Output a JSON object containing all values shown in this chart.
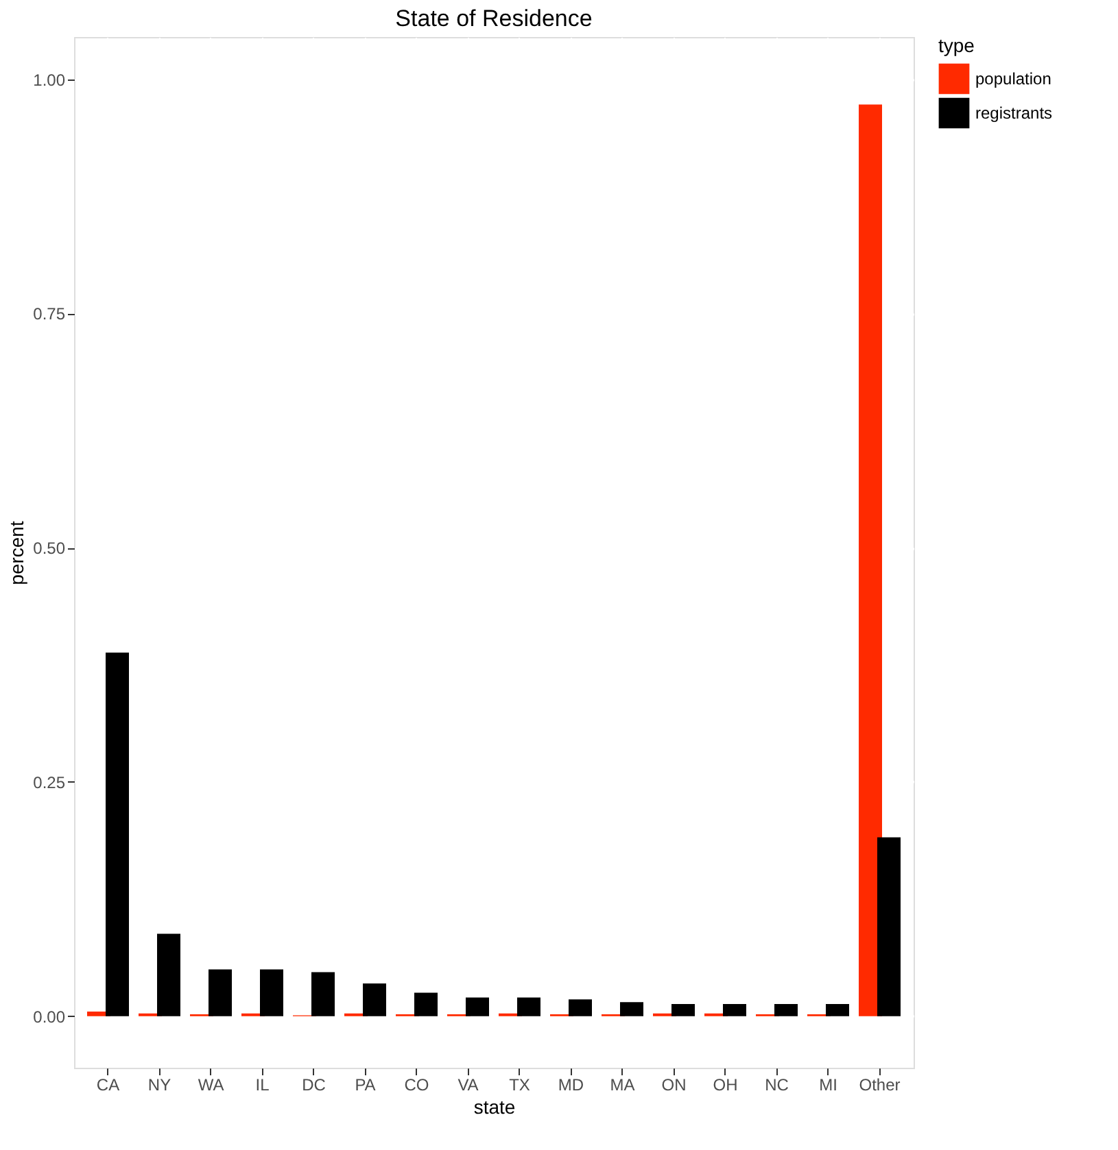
{
  "chart_data": {
    "type": "bar",
    "title": "State of Residence",
    "xlabel": "state",
    "ylabel": "percent",
    "legend_title": "type",
    "categories": [
      "CA",
      "NY",
      "WA",
      "IL",
      "DC",
      "PA",
      "CO",
      "VA",
      "TX",
      "MD",
      "MA",
      "ON",
      "OH",
      "NC",
      "MI",
      "Other"
    ],
    "series": [
      {
        "name": "population",
        "color": "#ff2a00",
        "values": [
          0.005,
          0.003,
          0.002,
          0.003,
          0.001,
          0.003,
          0.002,
          0.002,
          0.003,
          0.002,
          0.002,
          0.003,
          0.003,
          0.002,
          0.002,
          0.973
        ]
      },
      {
        "name": "registrants",
        "color": "#000000",
        "values": [
          0.388,
          0.088,
          0.05,
          0.05,
          0.047,
          0.035,
          0.025,
          0.02,
          0.02,
          0.018,
          0.015,
          0.013,
          0.013,
          0.013,
          0.013,
          0.191
        ]
      }
    ],
    "ylim": [
      -0.055,
      1.045
    ],
    "yticks": [
      {
        "value": 0,
        "label": "0.00"
      },
      {
        "value": 0.25,
        "label": "0.25"
      },
      {
        "value": 0.5,
        "label": "0.50"
      },
      {
        "value": 0.75,
        "label": "0.75"
      },
      {
        "value": 1,
        "label": "1.00"
      }
    ],
    "grid": true,
    "legend": "right"
  }
}
